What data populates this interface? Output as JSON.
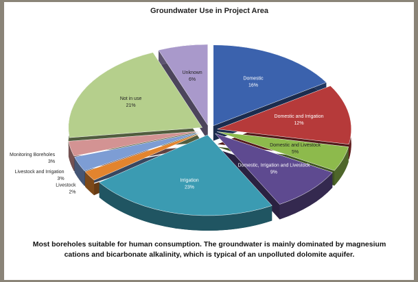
{
  "chart_data": {
    "type": "pie",
    "title": "Groundwater Use in Project Area",
    "categories": [
      "Domestic",
      "Domestic and Irrigation",
      "Domestic and Livestock",
      "Domestic, Irrigation and Livestock",
      "Irrigation",
      "Livestock",
      "Livestock and Irrigation",
      "Monitoring Boreholes",
      "Not in use",
      "Unknown"
    ],
    "values": [
      16,
      12,
      5,
      9,
      23,
      2,
      3,
      3,
      21,
      6
    ],
    "value_labels": [
      "16%",
      "12%",
      "5%",
      "9%",
      "23%",
      "2%",
      "3%",
      "3%",
      "21%",
      "6%"
    ],
    "colors": [
      "#3b62ad",
      "#b63a3a",
      "#8dba4c",
      "#5e4a90",
      "#3b9bb2",
      "#e3842e",
      "#7d9dd4",
      "#d39393",
      "#b5cf8c",
      "#a999cb"
    ],
    "caption": "Most boreholes suitable for human consumption.  The groundwater is mainly dominated by magnesium cations and bicarbonate alkalinity, which is typical of an unpolluted dolomite aquifer."
  }
}
